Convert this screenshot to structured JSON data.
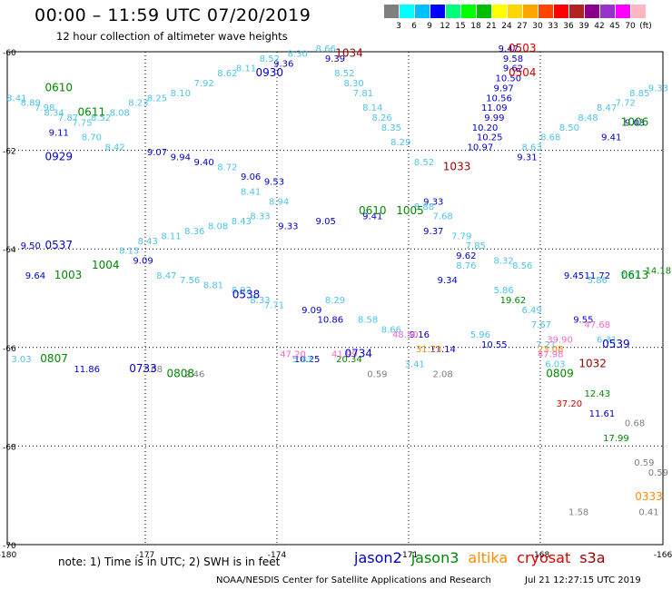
{
  "header": {
    "title": "00:00 – 11:59 UTC 07/20/2019",
    "subtitle": "12 hour collection of altimeter wave heights"
  },
  "colorbar": {
    "colors": [
      "#7f7f7f",
      "#00ffff",
      "#00bfff",
      "#0000ff",
      "#00ff7f",
      "#00ff00",
      "#00bf00",
      "#ffff00",
      "#ffd700",
      "#ffa500",
      "#ff4500",
      "#ff0000",
      "#b22222",
      "#8b008b",
      "#9932cc",
      "#ff00ff",
      "#ffb6c1"
    ],
    "labels": [
      "3",
      "6",
      "9",
      "12",
      "15",
      "18",
      "21",
      "24",
      "27",
      "30",
      "33",
      "36",
      "39",
      "42",
      "45",
      "70",
      "(ft)"
    ]
  },
  "footer": {
    "note": "note:  1) Time is in UTC;  2) SWH is in feet",
    "credit": "NOAA/NESDIS Center for Satellite Applications and Research",
    "timestamp": "Jul 21 12:27:15 UTC 2019",
    "satellites": [
      {
        "name": "jason2",
        "color": "#0000cc"
      },
      {
        "name": "jason3",
        "color": "#008800"
      },
      {
        "name": "altika",
        "color": "#ff8c00"
      },
      {
        "name": "cryosat",
        "color": "#dd0000"
      },
      {
        "name": "s3a",
        "color": "#990000"
      }
    ]
  },
  "chart_data": {
    "type": "scatter",
    "title": "00:00 – 11:59 UTC 07/20/2019",
    "xlim": [
      -180,
      -166
    ],
    "ylim": [
      -70,
      -60
    ],
    "x_ticks": [
      "-180",
      "-177",
      "-174",
      "-171",
      "-168",
      "-166"
    ],
    "y_ticks": [
      "-60",
      "-62",
      "-64",
      "-66",
      "-68",
      "-70"
    ],
    "grid": true,
    "series": [
      {
        "name": "jason2",
        "color": "#0000cc",
        "points": [
          {
            "x": -178.9,
            "y": -61.7,
            "label": "9.11"
          },
          {
            "x": -176.8,
            "y": -62.1,
            "label": "9.07"
          },
          {
            "x": -176.3,
            "y": -62.2,
            "label": "9.94"
          },
          {
            "x": -175.8,
            "y": -62.3,
            "label": "9.40"
          },
          {
            "x": -174.8,
            "y": -62.6,
            "label": "9.06"
          },
          {
            "x": -174.3,
            "y": -62.7,
            "label": "9.53"
          },
          {
            "x": -174.1,
            "y": -60.3,
            "label": "9.36"
          },
          {
            "x": -173.0,
            "y": -60.2,
            "label": "9.39"
          },
          {
            "x": -174.0,
            "y": -63.6,
            "label": "9.33"
          },
          {
            "x": -173.2,
            "y": -63.5,
            "label": "9.05"
          },
          {
            "x": -172.2,
            "y": -63.4,
            "label": "9.41"
          },
          {
            "x": -170.9,
            "y": -63.1,
            "label": "9.33"
          },
          {
            "x": -170.9,
            "y": -63.7,
            "label": "9.37"
          },
          {
            "x": -170.6,
            "y": -64.7,
            "label": "9.34"
          },
          {
            "x": -170.2,
            "y": -64.2,
            "label": "9.62"
          },
          {
            "x": -169.8,
            "y": -61.6,
            "label": "10.20"
          },
          {
            "x": -169.7,
            "y": -61.8,
            "label": "10.25"
          },
          {
            "x": -169.9,
            "y": -62.0,
            "label": "10.97"
          },
          {
            "x": -169.6,
            "y": -61.4,
            "label": "9.99"
          },
          {
            "x": -169.6,
            "y": -61.2,
            "label": "11.09"
          },
          {
            "x": -169.5,
            "y": -61.0,
            "label": "10.56"
          },
          {
            "x": -169.4,
            "y": -60.8,
            "label": "9.97"
          },
          {
            "x": -169.3,
            "y": -60.6,
            "label": "10.50"
          },
          {
            "x": -169.2,
            "y": -60.4,
            "label": "9.62"
          },
          {
            "x": -169.2,
            "y": -60.2,
            "label": "9.58"
          },
          {
            "x": -169.3,
            "y": -60.0,
            "label": "9.47"
          },
          {
            "x": -168.9,
            "y": -62.2,
            "label": "9.31"
          },
          {
            "x": -167.1,
            "y": -61.8,
            "label": "9.41"
          },
          {
            "x": -166.6,
            "y": -61.5,
            "label": "9.03"
          },
          {
            "x": -167.9,
            "y": -64.6,
            "label": "9.45"
          },
          {
            "x": -167.4,
            "y": -64.6,
            "label": "11.72"
          },
          {
            "x": -167.7,
            "y": -65.5,
            "label": "9.55"
          },
          {
            "x": -177.1,
            "y": -64.3,
            "label": "9.09"
          },
          {
            "x": -173.5,
            "y": -65.3,
            "label": "9.09"
          },
          {
            "x": -173.1,
            "y": -65.5,
            "label": "10.86"
          },
          {
            "x": -171.2,
            "y": -65.8,
            "label": "9.16"
          },
          {
            "x": -170.7,
            "y": -66.1,
            "label": "11.14"
          },
          {
            "x": -169.6,
            "y": -66.0,
            "label": "10.55"
          },
          {
            "x": -173.6,
            "y": -66.3,
            "label": "10.25"
          },
          {
            "x": -179.4,
            "y": -64.6,
            "label": "9.64"
          },
          {
            "x": -179.5,
            "y": -64.0,
            "label": "9.50"
          },
          {
            "x": -178.3,
            "y": -66.5,
            "label": "11.86"
          },
          {
            "x": -167.3,
            "y": -67.4,
            "label": "11.61"
          }
        ]
      },
      {
        "name": "jason3",
        "color": "#008800",
        "points": [
          {
            "x": -169.2,
            "y": -65.1,
            "label": "19.62"
          },
          {
            "x": -172.7,
            "y": -66.3,
            "label": "20.34"
          },
          {
            "x": -167.0,
            "y": -67.9,
            "label": "17.99"
          },
          {
            "x": -167.4,
            "y": -67.0,
            "label": "12.43"
          },
          {
            "x": -166.1,
            "y": -64.5,
            "label": "14.18"
          }
        ]
      },
      {
        "name": "s3a",
        "color": "#4fc3e8",
        "points": [
          {
            "x": -179.8,
            "y": -61.0,
            "label": "8.41"
          },
          {
            "x": -179.5,
            "y": -61.1,
            "label": "8.89"
          },
          {
            "x": -179.2,
            "y": -61.2,
            "label": "7.98"
          },
          {
            "x": -179.0,
            "y": -61.3,
            "label": "8.34"
          },
          {
            "x": -178.7,
            "y": -61.4,
            "label": "7.87"
          },
          {
            "x": -178.4,
            "y": -61.5,
            "label": "7.75"
          },
          {
            "x": -178.0,
            "y": -61.4,
            "label": "8.52"
          },
          {
            "x": -177.6,
            "y": -61.3,
            "label": "8.08"
          },
          {
            "x": -177.2,
            "y": -61.1,
            "label": "8.23"
          },
          {
            "x": -176.8,
            "y": -61.0,
            "label": "8.25"
          },
          {
            "x": -176.3,
            "y": -60.9,
            "label": "8.10"
          },
          {
            "x": -175.8,
            "y": -60.7,
            "label": "7.92"
          },
          {
            "x": -175.3,
            "y": -60.5,
            "label": "8.62"
          },
          {
            "x": -174.9,
            "y": -60.4,
            "label": "8.11"
          },
          {
            "x": -174.4,
            "y": -60.2,
            "label": "8.52"
          },
          {
            "x": -173.8,
            "y": -60.1,
            "label": "8.30"
          },
          {
            "x": -173.2,
            "y": -60.0,
            "label": "8.66"
          },
          {
            "x": -172.8,
            "y": -60.5,
            "label": "8.52"
          },
          {
            "x": -172.6,
            "y": -60.7,
            "label": "8.30"
          },
          {
            "x": -172.4,
            "y": -60.9,
            "label": "7.81"
          },
          {
            "x": -172.2,
            "y": -61.2,
            "label": "8.14"
          },
          {
            "x": -172.0,
            "y": -61.4,
            "label": "8.26"
          },
          {
            "x": -171.8,
            "y": -61.6,
            "label": "8.35"
          },
          {
            "x": -171.6,
            "y": -61.9,
            "label": "8.29"
          },
          {
            "x": -171.1,
            "y": -62.3,
            "label": "8.52"
          },
          {
            "x": -178.2,
            "y": -61.8,
            "label": "8.70"
          },
          {
            "x": -177.7,
            "y": -62.0,
            "label": "8.42"
          },
          {
            "x": -175.3,
            "y": -62.4,
            "label": "8.72"
          },
          {
            "x": -174.8,
            "y": -62.9,
            "label": "8.41"
          },
          {
            "x": -174.2,
            "y": -63.1,
            "label": "8.94"
          },
          {
            "x": -176.6,
            "y": -64.6,
            "label": "8.47"
          },
          {
            "x": -176.1,
            "y": -64.7,
            "label": "7.56"
          },
          {
            "x": -175.6,
            "y": -64.8,
            "label": "8.81"
          },
          {
            "x": -175.0,
            "y": -64.9,
            "label": "8.92"
          },
          {
            "x": -174.6,
            "y": -65.1,
            "label": "8.33"
          },
          {
            "x": -174.3,
            "y": -65.2,
            "label": "7.71"
          },
          {
            "x": -173.0,
            "y": -65.1,
            "label": "8.29"
          },
          {
            "x": -172.3,
            "y": -65.5,
            "label": "8.58"
          },
          {
            "x": -171.8,
            "y": -65.7,
            "label": "8.66"
          },
          {
            "x": -177.4,
            "y": -64.1,
            "label": "8.13"
          },
          {
            "x": -177.0,
            "y": -63.9,
            "label": "8.43"
          },
          {
            "x": -176.5,
            "y": -63.8,
            "label": "8.11"
          },
          {
            "x": -176.0,
            "y": -63.7,
            "label": "8.36"
          },
          {
            "x": -175.5,
            "y": -63.6,
            "label": "8.08"
          },
          {
            "x": -175.0,
            "y": -63.5,
            "label": "8.43"
          },
          {
            "x": -174.6,
            "y": -63.4,
            "label": "8.33"
          },
          {
            "x": -171.1,
            "y": -63.2,
            "label": "8.88"
          },
          {
            "x": -170.7,
            "y": -63.4,
            "label": "7.68"
          },
          {
            "x": -170.3,
            "y": -63.8,
            "label": "7.79"
          },
          {
            "x": -170.0,
            "y": -64.0,
            "label": "7.85"
          },
          {
            "x": -169.4,
            "y": -64.3,
            "label": "8.32"
          },
          {
            "x": -169.0,
            "y": -64.4,
            "label": "8.56"
          },
          {
            "x": -168.8,
            "y": -65.3,
            "label": "6.49"
          },
          {
            "x": -168.6,
            "y": -65.6,
            "label": "7.67"
          },
          {
            "x": -169.4,
            "y": -64.9,
            "label": "5.86"
          },
          {
            "x": -170.2,
            "y": -64.4,
            "label": "8.76"
          },
          {
            "x": -169.9,
            "y": -65.8,
            "label": "5.96"
          },
          {
            "x": -168.5,
            "y": -66.0,
            "label": "7.21"
          },
          {
            "x": -167.2,
            "y": -65.9,
            "label": "6.31"
          },
          {
            "x": -166.7,
            "y": -64.6,
            "label": "7.97"
          },
          {
            "x": -167.4,
            "y": -64.7,
            "label": "5.86"
          },
          {
            "x": -166.1,
            "y": -60.8,
            "label": "9.33"
          },
          {
            "x": -166.5,
            "y": -60.9,
            "label": "8.85"
          },
          {
            "x": -166.8,
            "y": -61.1,
            "label": "7.72"
          },
          {
            "x": -167.2,
            "y": -61.2,
            "label": "8.47"
          },
          {
            "x": -167.6,
            "y": -61.4,
            "label": "8.48"
          },
          {
            "x": -168.0,
            "y": -61.6,
            "label": "8.50"
          },
          {
            "x": -168.4,
            "y": -61.8,
            "label": "8.68"
          },
          {
            "x": -168.8,
            "y": -62.0,
            "label": "8.63"
          },
          {
            "x": -173.7,
            "y": -66.3,
            "label": "5.83"
          },
          {
            "x": -171.3,
            "y": -66.4,
            "label": "3.41"
          },
          {
            "x": -168.3,
            "y": -66.4,
            "label": "6.03"
          },
          {
            "x": -179.7,
            "y": -66.3,
            "label": "3.03"
          }
        ]
      },
      {
        "name": "gray",
        "color": "#7f7f7f",
        "points": [
          {
            "x": -176.9,
            "y": -66.5,
            "label": "2.08"
          },
          {
            "x": -176.0,
            "y": -66.6,
            "label": "2.46"
          },
          {
            "x": -172.1,
            "y": -66.6,
            "label": "0.59"
          },
          {
            "x": -170.7,
            "y": -66.6,
            "label": "2.08"
          },
          {
            "x": -166.6,
            "y": -67.6,
            "label": "0.68"
          },
          {
            "x": -166.4,
            "y": -68.4,
            "label": "0.59"
          },
          {
            "x": -166.1,
            "y": -68.6,
            "label": "0.59"
          },
          {
            "x": -166.3,
            "y": -69.4,
            "label": "0.41"
          },
          {
            "x": -167.8,
            "y": -69.4,
            "label": "1.58"
          }
        ]
      },
      {
        "name": "altika",
        "color": "#ff8c00",
        "points": [
          {
            "x": -171.0,
            "y": -66.1,
            "label": "31.73"
          },
          {
            "x": -168.4,
            "y": -66.1,
            "label": "23.08"
          }
        ]
      },
      {
        "name": "cryosat",
        "color": "#dd0000",
        "points": [
          {
            "x": -168.0,
            "y": -67.2,
            "label": "37.20"
          }
        ]
      },
      {
        "name": "violet",
        "color": "#ff66cc",
        "points": [
          {
            "x": -173.9,
            "y": -66.2,
            "label": "47.20"
          },
          {
            "x": -172.8,
            "y": -66.2,
            "label": "41.99"
          },
          {
            "x": -171.5,
            "y": -65.8,
            "label": "48.50"
          },
          {
            "x": -168.2,
            "y": -65.9,
            "label": "39.90"
          },
          {
            "x": -167.4,
            "y": -65.6,
            "label": "47.68"
          },
          {
            "x": -168.4,
            "y": -66.2,
            "label": "47.98"
          }
        ]
      }
    ],
    "time_tags": [
      {
        "x": -178.9,
        "y": -60.8,
        "label": "0610",
        "color": "#008800"
      },
      {
        "x": -178.2,
        "y": -61.3,
        "label": "0611",
        "color": "#008800"
      },
      {
        "x": -178.9,
        "y": -62.2,
        "label": "0929",
        "color": "#0000cc"
      },
      {
        "x": -174.4,
        "y": -60.5,
        "label": "0930",
        "color": "#0000cc"
      },
      {
        "x": -172.7,
        "y": -60.1,
        "label": "1034",
        "color": "#990000"
      },
      {
        "x": -169.0,
        "y": -60.0,
        "label": "0503",
        "color": "#dd0000"
      },
      {
        "x": -169.0,
        "y": -60.5,
        "label": "0504",
        "color": "#dd0000"
      },
      {
        "x": -170.4,
        "y": -62.4,
        "label": "1033",
        "color": "#990000"
      },
      {
        "x": -166.6,
        "y": -61.5,
        "label": "1006",
        "color": "#008800"
      },
      {
        "x": -172.2,
        "y": -63.3,
        "label": "0610",
        "color": "#008800"
      },
      {
        "x": -171.4,
        "y": -63.3,
        "label": "1005",
        "color": "#008800"
      },
      {
        "x": -178.9,
        "y": -64.0,
        "label": "0537",
        "color": "#0000cc"
      },
      {
        "x": -178.7,
        "y": -64.6,
        "label": "1003",
        "color": "#008800"
      },
      {
        "x": -177.9,
        "y": -64.4,
        "label": "1004",
        "color": "#008800"
      },
      {
        "x": -174.9,
        "y": -65.0,
        "label": "0538",
        "color": "#0000cc"
      },
      {
        "x": -166.6,
        "y": -64.6,
        "label": "0613",
        "color": "#008800"
      },
      {
        "x": -179.0,
        "y": -66.3,
        "label": "0807",
        "color": "#008800"
      },
      {
        "x": -177.1,
        "y": -66.5,
        "label": "0733",
        "color": "#0000cc"
      },
      {
        "x": -176.3,
        "y": -66.6,
        "label": "0808",
        "color": "#008800"
      },
      {
        "x": -172.5,
        "y": -66.2,
        "label": "0734",
        "color": "#0000cc"
      },
      {
        "x": -168.2,
        "y": -66.6,
        "label": "0809",
        "color": "#008800"
      },
      {
        "x": -167.0,
        "y": -66.0,
        "label": "0539",
        "color": "#0000cc"
      },
      {
        "x": -167.5,
        "y": -66.4,
        "label": "1032",
        "color": "#990000"
      },
      {
        "x": -166.3,
        "y": -69.1,
        "label": "0333",
        "color": "#ff8c00"
      }
    ]
  }
}
